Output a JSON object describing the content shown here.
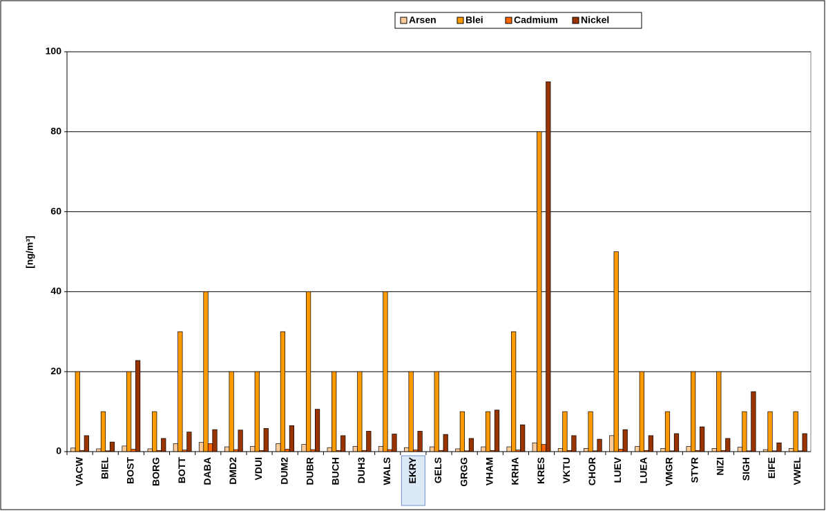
{
  "chart_data": {
    "type": "bar",
    "y_label": "[ng/m³]",
    "categories": [
      "VACW",
      "BIEL",
      "BOST",
      "BORG",
      "BOTT",
      "DABA",
      "DMD2",
      "VDUI",
      "DUM2",
      "DUBR",
      "BUCH",
      "DUH3",
      "WALS",
      "EKRY",
      "GELS",
      "GRGG",
      "VHAM",
      "KRHA",
      "KRES",
      "VKTU",
      "CHOR",
      "LUEV",
      "LUEA",
      "VMGR",
      "STYR",
      "NIZI",
      "SIGH",
      "EIFE",
      "VWEL"
    ],
    "series": [
      {
        "name": "Arsen",
        "color": "#FFCC99",
        "values": [
          0.9,
          0.7,
          1.4,
          0.7,
          2.0,
          2.3,
          1.2,
          1.3,
          2.0,
          1.8,
          1.0,
          1.3,
          1.3,
          1.0,
          1.2,
          0.7,
          1.2,
          1.2,
          2.2,
          0.8,
          0.8,
          4.0,
          1.3,
          0.8,
          1.3,
          0.8,
          1.1,
          0.5,
          0.8
        ]
      },
      {
        "name": "Blei",
        "color": "#FF9900",
        "values": [
          20,
          10,
          20,
          10,
          30,
          40,
          20,
          20,
          30,
          40,
          20,
          20,
          40,
          20,
          20,
          10,
          10,
          30,
          80,
          10,
          10,
          50,
          20,
          10,
          20,
          20,
          10,
          10,
          10
        ]
      },
      {
        "name": "Cadmium",
        "color": "#FF6600",
        "values": [
          0.3,
          0.2,
          0.6,
          0.3,
          0.4,
          2.0,
          0.5,
          0.3,
          0.6,
          0.5,
          0.3,
          0.3,
          0.5,
          0.4,
          0.3,
          0.2,
          0.3,
          0.4,
          1.8,
          0.3,
          0.2,
          0.6,
          0.3,
          0.2,
          0.3,
          0.3,
          0.2,
          0.2,
          0.2
        ]
      },
      {
        "name": "Nickel",
        "color": "#993300",
        "values": [
          4.0,
          2.4,
          22.8,
          3.3,
          4.9,
          5.5,
          5.4,
          5.8,
          6.5,
          10.6,
          4.0,
          5.1,
          4.4,
          5.1,
          4.3,
          3.3,
          10.4,
          6.7,
          92.5,
          4.0,
          3.1,
          5.5,
          4.0,
          4.5,
          6.2,
          3.3,
          15.0,
          2.2,
          4.5
        ]
      }
    ],
    "ylim": [
      0,
      100
    ],
    "yticks": [
      0,
      20,
      40,
      60,
      80,
      100
    ],
    "grid": true,
    "legend": "top"
  }
}
